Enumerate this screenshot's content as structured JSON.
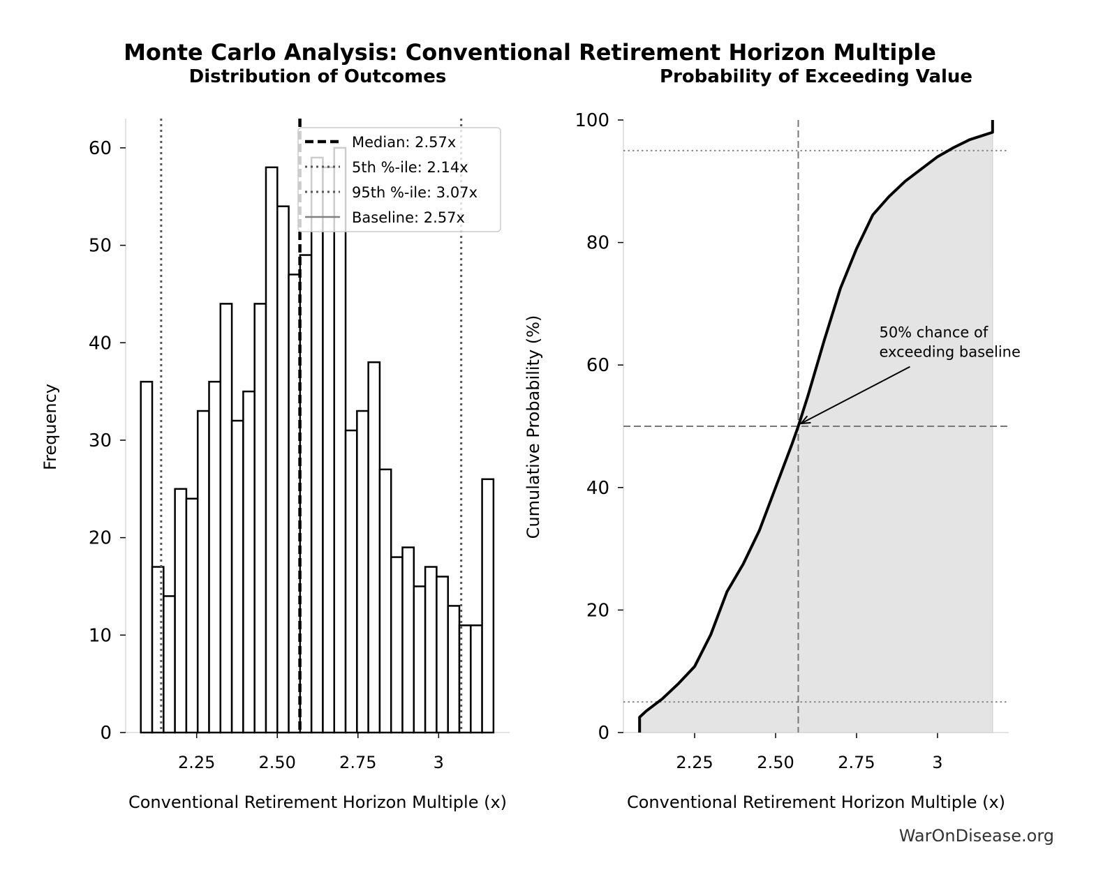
{
  "title": "Monte Carlo Analysis: Conventional Retirement Horizon Multiple",
  "watermark": "WarOnDisease.org",
  "chart_data": [
    {
      "type": "bar",
      "subtype": "histogram",
      "title": "Distribution of Outcomes",
      "xlabel": "Conventional Retirement Horizon Multiple (x)",
      "ylabel": "Frequency",
      "bin_start": 2.077,
      "bin_end": 3.17,
      "values": [
        36,
        17,
        14,
        25,
        24,
        33,
        36,
        44,
        32,
        35,
        44,
        58,
        54,
        47,
        49,
        59,
        58,
        60,
        31,
        33,
        38,
        27,
        18,
        19,
        15,
        17,
        16,
        13,
        11,
        11,
        26
      ],
      "xlim": [
        2.03,
        3.22
      ],
      "ylim": [
        0,
        63
      ],
      "xticks": [
        2.25,
        2.5,
        2.75,
        3
      ],
      "xtick_labels": [
        "2.25",
        "2.50",
        "2.75",
        "3"
      ],
      "yticks": [
        0,
        10,
        20,
        30,
        40,
        50,
        60
      ],
      "ytick_labels": [
        "0",
        "10",
        "20",
        "30",
        "40",
        "50",
        "60"
      ],
      "bar_fill": "#ffffff",
      "bar_edge": "#000000",
      "reference_lines": [
        {
          "label": "Median: 2.57x",
          "x": 2.57,
          "style": "dashed",
          "color": "#000000"
        },
        {
          "label": "5th %-ile: 2.14x",
          "x": 2.14,
          "style": "dotted",
          "color": "#555555"
        },
        {
          "label": "95th %-ile: 3.07x",
          "x": 3.07,
          "style": "dotted",
          "color": "#555555"
        },
        {
          "label": "Baseline: 2.57x",
          "x": 2.57,
          "style": "solid",
          "color": "#808080"
        }
      ],
      "legend_position": "top-right"
    },
    {
      "type": "area",
      "title": "Probability of Exceeding Value",
      "xlabel": "Conventional Retirement Horizon Multiple (x)",
      "ylabel": "Cumulative Probability (%)",
      "x": [
        2.08,
        2.08,
        2.1,
        2.15,
        2.2,
        2.25,
        2.3,
        2.35,
        2.4,
        2.45,
        2.5,
        2.55,
        2.57,
        2.6,
        2.65,
        2.7,
        2.75,
        2.8,
        2.85,
        2.9,
        2.95,
        3.0,
        3.05,
        3.1,
        3.17,
        3.17
      ],
      "y": [
        0,
        2.5,
        3.5,
        5.5,
        8,
        10.8,
        16,
        23,
        27.5,
        33,
        40,
        47,
        50,
        55,
        64,
        72.5,
        79,
        84.5,
        87.5,
        90,
        92,
        94,
        95.5,
        96.8,
        98,
        100
      ],
      "xlim": [
        2.03,
        3.22
      ],
      "ylim": [
        0,
        100
      ],
      "xticks": [
        2.25,
        2.5,
        2.75,
        3
      ],
      "xtick_labels": [
        "2.25",
        "2.50",
        "2.75",
        "3"
      ],
      "yticks": [
        0,
        20,
        40,
        60,
        80,
        100
      ],
      "ytick_labels": [
        "0",
        "20",
        "40",
        "60",
        "80",
        "100"
      ],
      "fill_color": "#e4e4e4",
      "line_color": "#000000",
      "hlines": [
        {
          "y": 5,
          "style": "dotted"
        },
        {
          "y": 95,
          "style": "dotted"
        },
        {
          "y": 50,
          "style": "dashed"
        }
      ],
      "vlines": [
        {
          "x": 2.57,
          "style": "dashed"
        }
      ],
      "annotation": {
        "lines": [
          "50% chance of",
          "exceeding baseline"
        ],
        "text_at": [
          2.82,
          62
        ],
        "arrow_to": [
          2.57,
          50
        ]
      }
    }
  ]
}
